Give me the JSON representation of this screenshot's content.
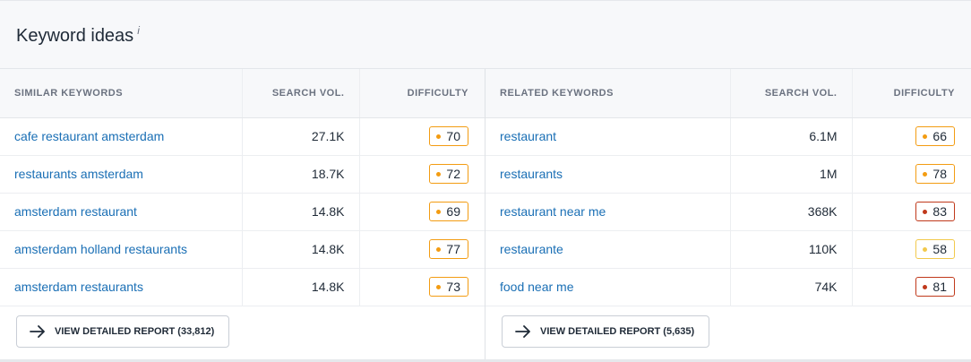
{
  "header": {
    "title": "Keyword ideas",
    "info": "i"
  },
  "left": {
    "columns": [
      "SIMILAR KEYWORDS",
      "SEARCH VOL.",
      "DIFFICULTY"
    ],
    "rows": [
      {
        "keyword": "cafe restaurant amsterdam",
        "volume": "27.1K",
        "difficulty": "70",
        "color": "#f39c12"
      },
      {
        "keyword": "restaurants amsterdam",
        "volume": "18.7K",
        "difficulty": "72",
        "color": "#f39c12"
      },
      {
        "keyword": "amsterdam restaurant",
        "volume": "14.8K",
        "difficulty": "69",
        "color": "#f39c12"
      },
      {
        "keyword": "amsterdam holland restaurants",
        "volume": "14.8K",
        "difficulty": "77",
        "color": "#f39c12"
      },
      {
        "keyword": "amsterdam restaurants",
        "volume": "14.8K",
        "difficulty": "73",
        "color": "#f39c12"
      }
    ],
    "button": "VIEW DETAILED REPORT (33,812)"
  },
  "right": {
    "columns": [
      "RELATED KEYWORDS",
      "SEARCH VOL.",
      "DIFFICULTY"
    ],
    "rows": [
      {
        "keyword": "restaurant",
        "volume": "6.1M",
        "difficulty": "66",
        "color": "#f39c12"
      },
      {
        "keyword": "restaurants",
        "volume": "1M",
        "difficulty": "78",
        "color": "#f39c12"
      },
      {
        "keyword": "restaurant near me",
        "volume": "368K",
        "difficulty": "83",
        "color": "#c0391b"
      },
      {
        "keyword": "restaurante",
        "volume": "110K",
        "difficulty": "58",
        "color": "#f2c94c"
      },
      {
        "keyword": "food near me",
        "volume": "74K",
        "difficulty": "81",
        "color": "#c0391b"
      }
    ],
    "button": "VIEW DETAILED REPORT (5,635)"
  }
}
